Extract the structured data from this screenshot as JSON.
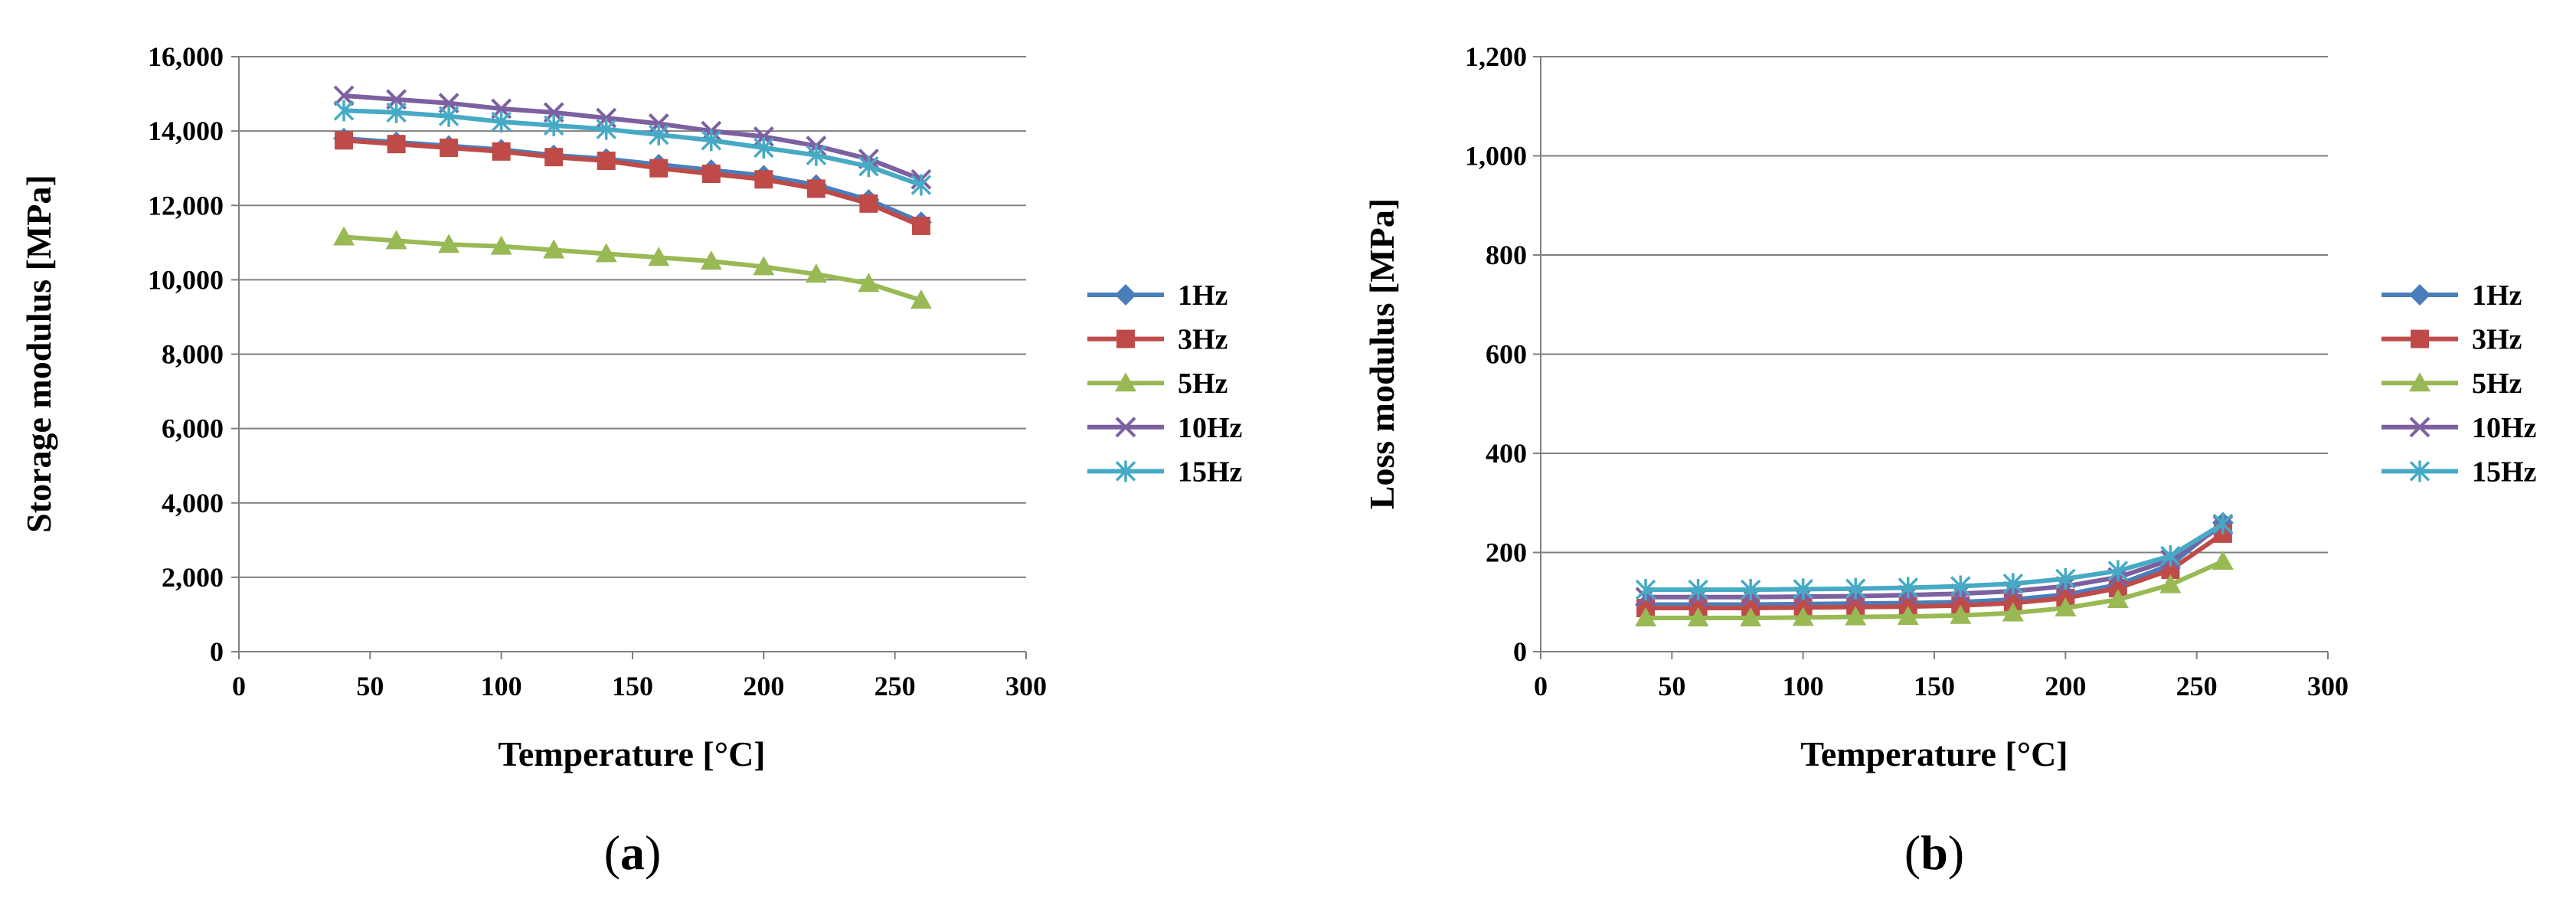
{
  "colors": {
    "1Hz": "#4a7ebb",
    "3Hz": "#be4b48",
    "5Hz": "#98b954",
    "10Hz": "#7d60a0",
    "15Hz": "#46aac5",
    "grid": "#808080",
    "axis": "#808080"
  },
  "chart_data": [
    {
      "type": "line",
      "panel_label": "a",
      "xlabel": "Temperature [°C]",
      "ylabel": "Storage modulus [MPa]",
      "xlim": [
        0,
        300
      ],
      "ylim": [
        0,
        16000
      ],
      "xticks": [
        0,
        50,
        100,
        150,
        200,
        250,
        300
      ],
      "xtick_labels": [
        "0",
        "50",
        "100",
        "150",
        "200",
        "250",
        "300"
      ],
      "yticks": [
        0,
        2000,
        4000,
        6000,
        8000,
        10000,
        12000,
        14000,
        16000
      ],
      "ytick_labels": [
        "0",
        "2,000",
        "4,000",
        "6,000",
        "8,000",
        "10,000",
        "12,000",
        "14,000",
        "16,000"
      ],
      "grid": "horizontal",
      "legend": "right",
      "x": [
        40,
        60,
        80,
        100,
        120,
        140,
        160,
        180,
        200,
        220,
        240,
        260
      ],
      "series": [
        {
          "name": "1Hz",
          "marker": "diamond",
          "values": [
            13800,
            13700,
            13600,
            13500,
            13350,
            13250,
            13100,
            12950,
            12800,
            12550,
            12150,
            11550
          ]
        },
        {
          "name": "3Hz",
          "marker": "square",
          "values": [
            13750,
            13650,
            13550,
            13450,
            13300,
            13200,
            13000,
            12850,
            12700,
            12450,
            12050,
            11450
          ]
        },
        {
          "name": "5Hz",
          "marker": "triangle",
          "values": [
            11150,
            11050,
            10950,
            10900,
            10800,
            10700,
            10600,
            10500,
            10350,
            10150,
            9900,
            9450
          ]
        },
        {
          "name": "10Hz",
          "marker": "x",
          "values": [
            14950,
            14850,
            14750,
            14600,
            14500,
            14350,
            14200,
            14000,
            13850,
            13600,
            13250,
            12700
          ]
        },
        {
          "name": "15Hz",
          "marker": "asterisk",
          "values": [
            14550,
            14500,
            14400,
            14250,
            14150,
            14050,
            13900,
            13750,
            13550,
            13350,
            13050,
            12550
          ]
        }
      ]
    },
    {
      "type": "line",
      "panel_label": "b",
      "xlabel": "Temperature [°C]",
      "ylabel": "Loss modulus [MPa]",
      "xlim": [
        0,
        300
      ],
      "ylim": [
        0,
        1200
      ],
      "xticks": [
        0,
        50,
        100,
        150,
        200,
        250,
        300
      ],
      "xtick_labels": [
        "0",
        "50",
        "100",
        "150",
        "200",
        "250",
        "300"
      ],
      "yticks": [
        0,
        200,
        400,
        600,
        800,
        1000,
        1200
      ],
      "ytick_labels": [
        "0",
        "200",
        "400",
        "600",
        "800",
        "1,000",
        "1,200"
      ],
      "grid": "horizontal",
      "legend": "right",
      "x": [
        40,
        60,
        80,
        100,
        120,
        140,
        160,
        180,
        200,
        220,
        240,
        260
      ],
      "series": [
        {
          "name": "1Hz",
          "marker": "diamond",
          "values": [
            95,
            95,
            95,
            96,
            97,
            98,
            100,
            105,
            115,
            135,
            175,
            260
          ]
        },
        {
          "name": "3Hz",
          "marker": "square",
          "values": [
            88,
            88,
            88,
            89,
            90,
            91,
            93,
            98,
            108,
            128,
            165,
            238
          ]
        },
        {
          "name": "5Hz",
          "marker": "triangle",
          "values": [
            68,
            68,
            68,
            69,
            70,
            71,
            73,
            78,
            88,
            105,
            135,
            182
          ]
        },
        {
          "name": "10Hz",
          "marker": "x",
          "values": [
            110,
            110,
            110,
            111,
            112,
            114,
            117,
            122,
            132,
            150,
            185,
            255
          ]
        },
        {
          "name": "15Hz",
          "marker": "asterisk",
          "values": [
            125,
            125,
            125,
            126,
            127,
            129,
            132,
            137,
            147,
            163,
            193,
            258
          ]
        }
      ]
    }
  ]
}
